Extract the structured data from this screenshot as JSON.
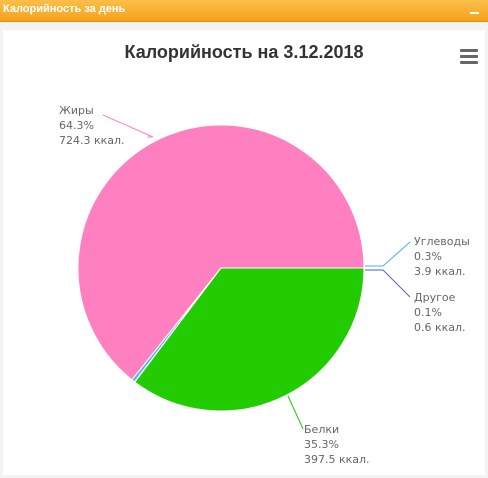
{
  "widget": {
    "title": "Калорийность за день"
  },
  "chart_data": {
    "type": "pie",
    "title": "Калорийность на 3.12.2018",
    "slices": [
      {
        "name": "Жиры",
        "percent": "64.3%",
        "kcal": "724.3 ккал.",
        "value": 724.3,
        "color": "#ff80c0"
      },
      {
        "name": "Углеводы",
        "percent": "0.3%",
        "kcal": "3.9 ккал.",
        "value": 3.9,
        "color": "#3cb4f0"
      },
      {
        "name": "Другое",
        "percent": "0.1%",
        "kcal": "0.6 ккал.",
        "value": 0.6,
        "color": "#5a5ac8"
      },
      {
        "name": "Белки",
        "percent": "35.3%",
        "kcal": "397.5 ккал.",
        "value": 397.5,
        "color": "#22cc00"
      }
    ]
  },
  "icons": {
    "collapse": "minus-icon",
    "menu": "hamburger-menu-icon"
  }
}
